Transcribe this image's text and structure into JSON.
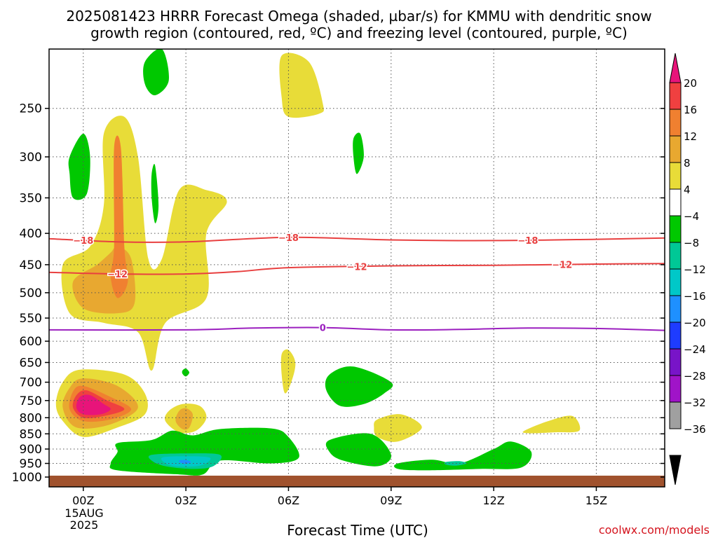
{
  "header": {
    "title_line1": "2025081423 HRRR Forecast Omega (shaded, µbar/s) for KMMU with dendritic snow",
    "title_line2": "growth region (contoured, red, ºC) and freezing level (contoured, purple, ºC)"
  },
  "footer": {
    "xlabel": "Forecast Time (UTC)",
    "credit": "coolwx.com/models",
    "date_day": "15AUG",
    "date_year": "2025"
  },
  "colors": {
    "terrain": "#a0522d",
    "dgz_contour": "#e84040",
    "freezing_contour": "#9b1fbf"
  },
  "chart_data": {
    "type": "heatmap",
    "title": "2025081423 HRRR Forecast Omega (shaded, µbar/s) for KMMU with dendritic snow growth region (contoured, red, ºC) and freezing level (contoured, purple, ºC)",
    "xlabel": "Forecast Time (UTC)",
    "ylabel": "",
    "x_ticks": [
      "00Z",
      "03Z",
      "06Z",
      "09Z",
      "12Z",
      "15Z"
    ],
    "x_tick_hours": [
      0,
      3,
      6,
      9,
      12,
      15
    ],
    "xlim_hours": [
      -1,
      17
    ],
    "y_ticks": [
      250,
      300,
      350,
      400,
      450,
      500,
      550,
      600,
      650,
      700,
      750,
      800,
      850,
      900,
      950,
      1000
    ],
    "ylim_hPa": [
      1000,
      200
    ],
    "y_scale": "log-pressure",
    "grid": true,
    "colorbar": {
      "labels": [
        "20",
        "16",
        "12",
        "8",
        "4",
        "−4",
        "−8",
        "−12",
        "−16",
        "−20",
        "−24",
        "−28",
        "−32",
        "−36"
      ],
      "colors": [
        "#e8147a",
        "#f04040",
        "#f08030",
        "#e8a830",
        "#e8dc38",
        "#ffffff",
        "#00c800",
        "#00c896",
        "#00c8c8",
        "#1e90ff",
        "#1e3cff",
        "#7814c8",
        "#a014c8",
        "#a0a0a0",
        "#000000"
      ]
    },
    "contours": [
      {
        "name": "-18",
        "label": "−18",
        "color": "#e84040",
        "points": [
          [
            -1,
            408
          ],
          [
            1,
            413
          ],
          [
            3,
            413
          ],
          [
            6,
            406
          ],
          [
            9,
            410
          ],
          [
            12,
            411
          ],
          [
            15,
            409
          ],
          [
            17,
            407
          ]
        ],
        "labels_at": [
          0,
          6,
          13
        ]
      },
      {
        "name": "-12",
        "label": "−12",
        "color": "#e84040",
        "points": [
          [
            -1,
            463
          ],
          [
            1,
            466
          ],
          [
            3,
            466
          ],
          [
            4.5,
            462
          ],
          [
            6,
            455
          ],
          [
            9,
            452
          ],
          [
            12,
            451
          ],
          [
            15,
            449
          ],
          [
            17,
            448
          ]
        ],
        "labels_at": [
          1,
          8,
          14
        ]
      },
      {
        "name": "0",
        "label": "0",
        "color": "#9b1fbf",
        "points": [
          [
            -1,
            575
          ],
          [
            3,
            575
          ],
          [
            5,
            571
          ],
          [
            7,
            570
          ],
          [
            9,
            575
          ],
          [
            11,
            574
          ],
          [
            13,
            571
          ],
          [
            15,
            572
          ],
          [
            17,
            576
          ]
        ],
        "labels_at": [
          7
        ]
      }
    ],
    "shaded_regions": [
      {
        "value": "4",
        "color": "#e8dc38",
        "points": [
          [
            0.6,
            275
          ],
          [
            1.2,
            258
          ],
          [
            1.6,
            300
          ],
          [
            1.9,
            440
          ],
          [
            2.3,
            440
          ],
          [
            2.8,
            340
          ],
          [
            3.6,
            340
          ],
          [
            4.2,
            355
          ],
          [
            3.6,
            400
          ],
          [
            3.6,
            510
          ],
          [
            2.4,
            560
          ],
          [
            2.0,
            670
          ],
          [
            1.6,
            580
          ],
          [
            0.6,
            560
          ],
          [
            -0.4,
            540
          ],
          [
            -0.6,
            450
          ],
          [
            0.2,
            420
          ],
          [
            0.6,
            360
          ]
        ]
      },
      {
        "value": "8",
        "color": "#e8a830",
        "points": [
          [
            0.8,
            430
          ],
          [
            1.0,
            420
          ],
          [
            1.4,
            440
          ],
          [
            1.5,
            520
          ],
          [
            1.0,
            540
          ],
          [
            0.0,
            530
          ],
          [
            -0.3,
            480
          ],
          [
            0.4,
            450
          ]
        ]
      },
      {
        "value": "12",
        "color": "#f08030",
        "points": [
          [
            0.9,
            290
          ],
          [
            1.1,
            290
          ],
          [
            1.2,
            420
          ],
          [
            1.3,
            480
          ],
          [
            1.0,
            510
          ],
          [
            0.8,
            470
          ],
          [
            0.9,
            420
          ]
        ]
      },
      {
        "value": "4",
        "color": "#e8dc38",
        "points": [
          [
            5.8,
            205
          ],
          [
            6.6,
            210
          ],
          [
            7.0,
            245
          ],
          [
            6.9,
            255
          ],
          [
            6.0,
            258
          ],
          [
            5.8,
            240
          ]
        ]
      },
      {
        "value": "-4",
        "color": "#00c800",
        "points": [
          [
            -0.4,
            300
          ],
          [
            0.0,
            275
          ],
          [
            0.2,
            300
          ],
          [
            0.1,
            345
          ],
          [
            -0.3,
            350
          ],
          [
            -0.4,
            320
          ]
        ]
      },
      {
        "value": "-4",
        "color": "#00c800",
        "points": [
          [
            1.8,
            210
          ],
          [
            2.3,
            200
          ],
          [
            2.5,
            225
          ],
          [
            2.1,
            238
          ],
          [
            1.8,
            228
          ]
        ]
      },
      {
        "value": "-4",
        "color": "#00c800",
        "points": [
          [
            2.0,
            320
          ],
          [
            2.1,
            310
          ],
          [
            2.2,
            360
          ],
          [
            2.1,
            385
          ],
          [
            2.0,
            350
          ]
        ]
      },
      {
        "value": "-4",
        "color": "#00c800",
        "points": [
          [
            7.9,
            280
          ],
          [
            8.1,
            275
          ],
          [
            8.2,
            300
          ],
          [
            8.0,
            320
          ],
          [
            7.9,
            300
          ]
        ]
      },
      {
        "value": "4",
        "color": "#e8dc38",
        "points": [
          [
            -0.6,
            700
          ],
          [
            -0.1,
            668
          ],
          [
            1.2,
            680
          ],
          [
            1.8,
            730
          ],
          [
            1.8,
            790
          ],
          [
            1.0,
            830
          ],
          [
            0.0,
            860
          ],
          [
            -0.6,
            810
          ],
          [
            -0.8,
            760
          ]
        ]
      },
      {
        "value": "8",
        "color": "#e8a830",
        "points": [
          [
            -0.4,
            715
          ],
          [
            0.0,
            690
          ],
          [
            1.0,
            710
          ],
          [
            1.6,
            770
          ],
          [
            0.8,
            820
          ],
          [
            -0.2,
            830
          ],
          [
            -0.6,
            770
          ]
        ]
      },
      {
        "value": "12",
        "color": "#f08030",
        "points": [
          [
            -0.3,
            725
          ],
          [
            0.0,
            710
          ],
          [
            0.8,
            740
          ],
          [
            1.4,
            775
          ],
          [
            0.8,
            805
          ],
          [
            0.0,
            810
          ],
          [
            -0.4,
            775
          ]
        ]
      },
      {
        "value": "16",
        "color": "#f04040",
        "points": [
          [
            -0.2,
            735
          ],
          [
            0.1,
            722
          ],
          [
            0.7,
            750
          ],
          [
            1.2,
            775
          ],
          [
            0.6,
            795
          ],
          [
            0.0,
            800
          ],
          [
            -0.3,
            770
          ]
        ]
      },
      {
        "value": "20",
        "color": "#e8147a",
        "points": [
          [
            -0.1,
            740
          ],
          [
            0.2,
            735
          ],
          [
            0.6,
            760
          ],
          [
            0.8,
            775
          ],
          [
            0.5,
            790
          ],
          [
            0.0,
            790
          ],
          [
            -0.2,
            770
          ]
        ]
      },
      {
        "value": "4",
        "color": "#e8dc38",
        "points": [
          [
            2.5,
            780
          ],
          [
            2.9,
            760
          ],
          [
            3.4,
            765
          ],
          [
            3.6,
            800
          ],
          [
            3.3,
            840
          ],
          [
            2.8,
            845
          ],
          [
            2.4,
            810
          ]
        ]
      },
      {
        "value": "8",
        "color": "#e8a830",
        "points": [
          [
            2.8,
            780
          ],
          [
            3.0,
            772
          ],
          [
            3.2,
            790
          ],
          [
            3.1,
            830
          ],
          [
            2.9,
            835
          ],
          [
            2.7,
            810
          ]
        ]
      },
      {
        "value": "-4",
        "color": "#00c800",
        "points": [
          [
            2.9,
            670
          ],
          [
            3.0,
            665
          ],
          [
            3.1,
            675
          ],
          [
            3.0,
            685
          ],
          [
            2.9,
            678
          ]
        ]
      },
      {
        "value": "4",
        "color": "#e8dc38",
        "points": [
          [
            5.8,
            630
          ],
          [
            6.0,
            620
          ],
          [
            6.2,
            650
          ],
          [
            6.1,
            695
          ],
          [
            5.9,
            730
          ],
          [
            5.8,
            680
          ]
        ]
      },
      {
        "value": "-4",
        "color": "#00c800",
        "points": [
          [
            1.0,
            880
          ],
          [
            2.0,
            870
          ],
          [
            2.6,
            840
          ],
          [
            3.2,
            855
          ],
          [
            4.0,
            835
          ],
          [
            5.5,
            833
          ],
          [
            6.0,
            860
          ],
          [
            6.3,
            930
          ],
          [
            5.5,
            950
          ],
          [
            4.0,
            940
          ],
          [
            3.5,
            990
          ],
          [
            2.8,
            990
          ],
          [
            1.0,
            975
          ],
          [
            0.8,
            950
          ],
          [
            1.0,
            910
          ]
        ]
      },
      {
        "value": "-8",
        "color": "#00c896",
        "points": [
          [
            2.0,
            920
          ],
          [
            3.0,
            915
          ],
          [
            4.0,
            920
          ],
          [
            3.8,
            960
          ],
          [
            3.2,
            970
          ],
          [
            2.4,
            960
          ],
          [
            2.0,
            940
          ]
        ]
      },
      {
        "value": "-12",
        "color": "#00c8c8",
        "points": [
          [
            2.3,
            930
          ],
          [
            3.0,
            925
          ],
          [
            3.7,
            930
          ],
          [
            3.5,
            955
          ],
          [
            3.0,
            962
          ],
          [
            2.5,
            955
          ]
        ]
      },
      {
        "value": "-16",
        "color": "#1e90ff",
        "points": [
          [
            2.8,
            940
          ],
          [
            3.0,
            938
          ],
          [
            3.15,
            945
          ],
          [
            3.0,
            952
          ],
          [
            2.85,
            948
          ]
        ]
      },
      {
        "value": "-4",
        "color": "#00c800",
        "points": [
          [
            7.2,
            680
          ],
          [
            7.9,
            660
          ],
          [
            9.0,
            700
          ],
          [
            8.8,
            730
          ],
          [
            8.2,
            760
          ],
          [
            7.5,
            765
          ],
          [
            7.1,
            720
          ]
        ]
      },
      {
        "value": "-4",
        "color": "#00c800",
        "points": [
          [
            7.2,
            870
          ],
          [
            8.4,
            850
          ],
          [
            9.0,
            920
          ],
          [
            8.6,
            960
          ],
          [
            7.6,
            940
          ],
          [
            7.2,
            910
          ]
        ]
      },
      {
        "value": "4",
        "color": "#e8dc38",
        "points": [
          [
            8.6,
            805
          ],
          [
            9.3,
            790
          ],
          [
            9.9,
            830
          ],
          [
            9.2,
            875
          ],
          [
            8.6,
            860
          ],
          [
            8.5,
            830
          ]
        ]
      },
      {
        "value": "-4",
        "color": "#00c800",
        "points": [
          [
            9.2,
            950
          ],
          [
            10.2,
            937
          ],
          [
            11.0,
            950
          ],
          [
            12.0,
            900
          ],
          [
            12.5,
            875
          ],
          [
            13.1,
            910
          ],
          [
            12.8,
            965
          ],
          [
            11.6,
            970
          ],
          [
            10.0,
            975
          ],
          [
            9.2,
            970
          ]
        ]
      },
      {
        "value": "-8",
        "color": "#00c896",
        "points": [
          [
            10.6,
            945
          ],
          [
            11.0,
            942
          ],
          [
            11.2,
            950
          ],
          [
            10.9,
            958
          ],
          [
            10.6,
            954
          ]
        ]
      },
      {
        "value": "4",
        "color": "#e8dc38",
        "points": [
          [
            12.9,
            840
          ],
          [
            13.6,
            810
          ],
          [
            14.3,
            795
          ],
          [
            14.5,
            840
          ],
          [
            13.8,
            845
          ],
          [
            13.0,
            848
          ]
        ]
      }
    ]
  }
}
